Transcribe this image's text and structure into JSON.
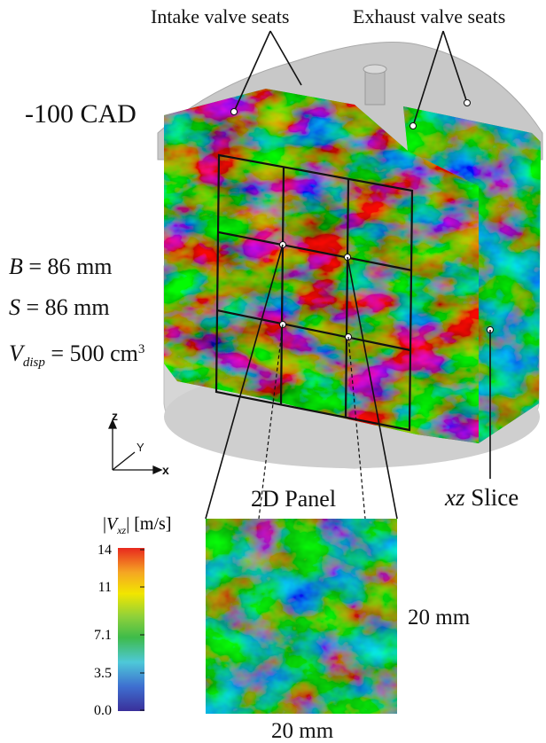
{
  "labels": {
    "intake": "Intake valve seats",
    "exhaust": "Exhaust valve seats",
    "cad": "-100 CAD",
    "panel": "2D Panel",
    "slice_axis": "xz",
    "slice_word": "Slice",
    "dim_vertical": "20 mm",
    "dim_horizontal": "20 mm"
  },
  "params": {
    "bore": {
      "sym": "B",
      "eq": "= 86",
      "unit": "mm"
    },
    "stroke": {
      "sym": "S",
      "eq": "= 86",
      "unit": "mm"
    },
    "disp": {
      "sym": "V",
      "sub": "disp",
      "eq": "= 500",
      "unit": "cm",
      "sup": "3"
    }
  },
  "axes": {
    "z": "z",
    "y": "Y",
    "x": "x"
  },
  "colorbar": {
    "title_open": "|",
    "title_sym": "V",
    "title_sub": "xz",
    "title_close": "| [m/s]",
    "ticks": [
      "14",
      "11",
      "7.1",
      "3.5",
      "0.0"
    ],
    "colors": [
      "#e8281e",
      "#f5a623",
      "#f2e600",
      "#8fd13a",
      "#3ebb4a",
      "#4ec8d8",
      "#3e6fd0",
      "#3a2f9a"
    ]
  }
}
